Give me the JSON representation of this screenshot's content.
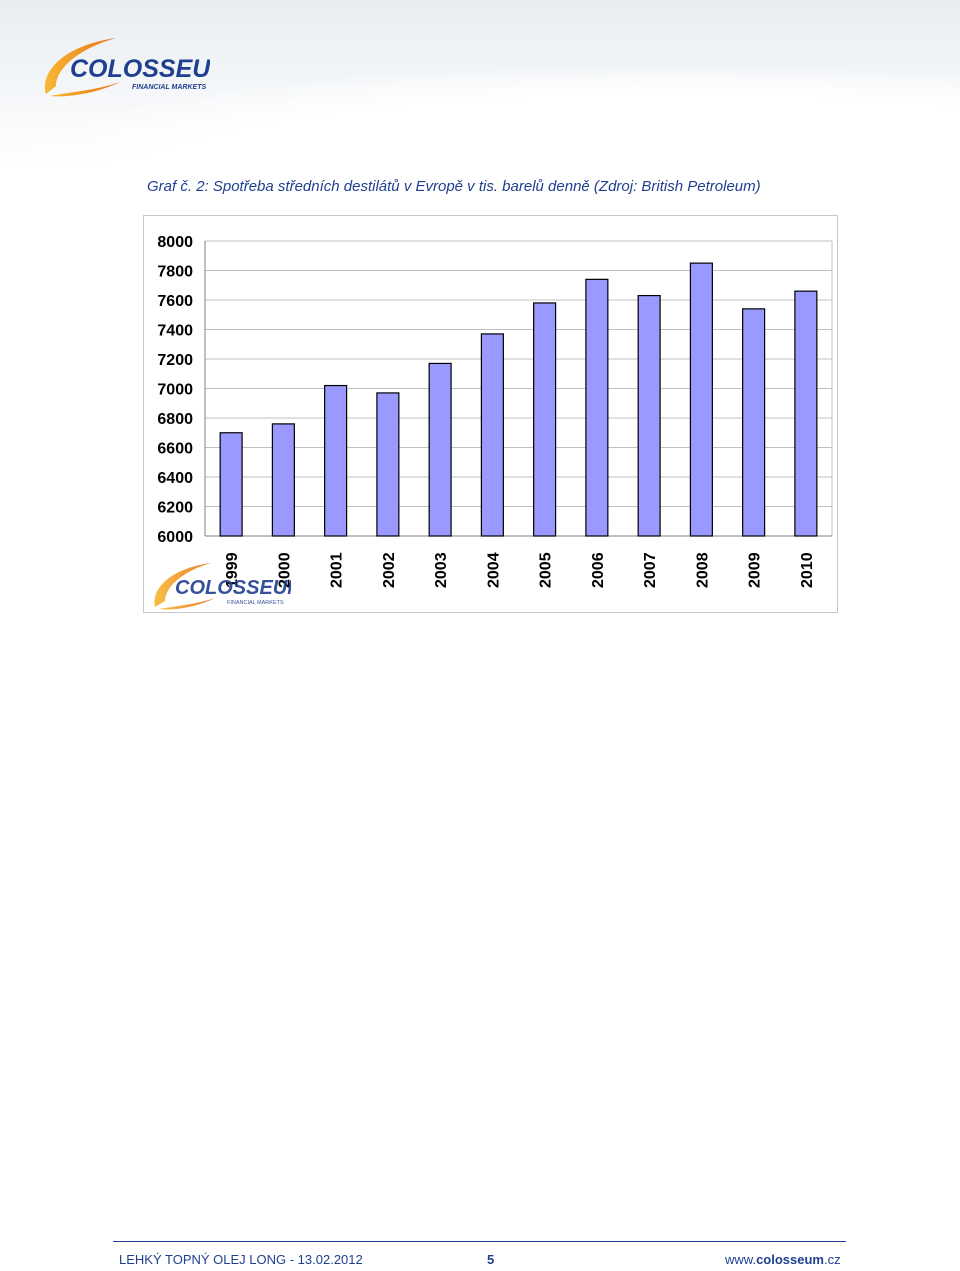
{
  "header": {
    "logo_text": "COLOSSEUM",
    "logo_subtext": "FINANCIAL MARKETS"
  },
  "caption": {
    "label": "Graf č.",
    "number": "2",
    "text": ": Spotřeba středních destilátů v Evropě v tis. barelů denně (Zdroj: British Petroleum)"
  },
  "chart_data": {
    "type": "bar",
    "categories": [
      "1999",
      "2000",
      "2001",
      "2002",
      "2003",
      "2004",
      "2005",
      "2006",
      "2007",
      "2008",
      "2009",
      "2010"
    ],
    "values": [
      6700,
      6760,
      7020,
      6970,
      7170,
      7370,
      7580,
      7740,
      7630,
      7850,
      7540,
      7660
    ],
    "ylim": [
      6000,
      8000
    ],
    "yticks": [
      "6000",
      "6200",
      "6400",
      "6600",
      "6800",
      "7000",
      "7200",
      "7400",
      "7600",
      "7800",
      "8000"
    ],
    "title": "",
    "xlabel": "",
    "ylabel": "",
    "grid": true,
    "bar_color": "#9999ff",
    "legend": "none"
  },
  "watermark": {
    "logo_text": "COLOSSEUM",
    "logo_subtext": "FINANCIAL MARKETS"
  },
  "footer": {
    "left": "LEHKÝ TOPNÝ OLEJ LONG - 13.02.2012",
    "page": "5",
    "right_prefix": "www.",
    "right_bold": "colosseum",
    "right_suffix": ".cz"
  },
  "colors": {
    "brand_blue": "#1f3f8f",
    "brand_orange": "#f39a1e"
  }
}
